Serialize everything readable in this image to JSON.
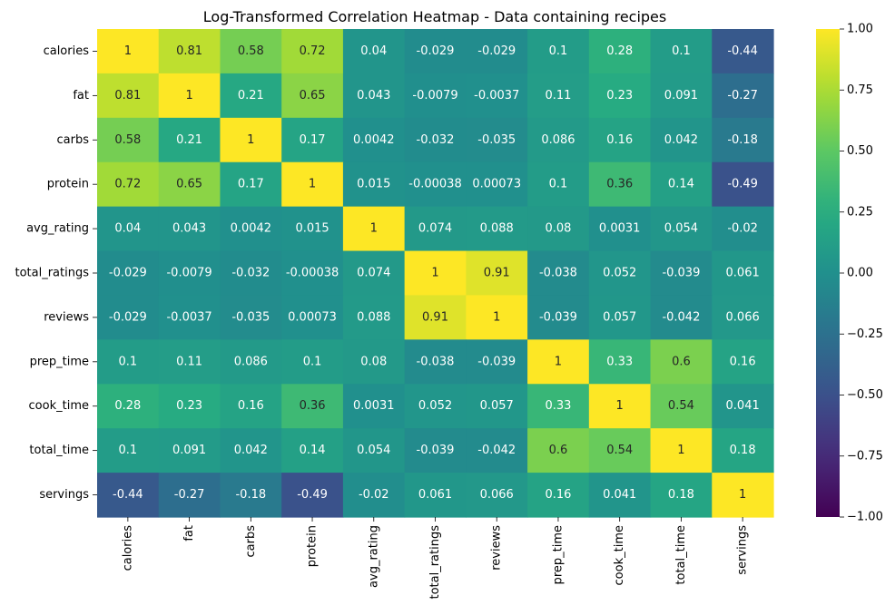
{
  "chart_data": {
    "type": "heatmap",
    "title": "Log-Transformed Correlation Heatmap - Data containing recipes",
    "xlabel": "",
    "ylabel": "",
    "colormap": "viridis",
    "vmin": -1.0,
    "vmax": 1.0,
    "categories": [
      "calories",
      "fat",
      "carbs",
      "protein",
      "avg_rating",
      "total_ratings",
      "reviews",
      "prep_time",
      "cook_time",
      "total_time",
      "servings"
    ],
    "values": [
      [
        1,
        0.81,
        0.58,
        0.72,
        0.04,
        -0.029,
        -0.029,
        0.1,
        0.28,
        0.1,
        -0.44
      ],
      [
        0.81,
        1,
        0.21,
        0.65,
        0.043,
        -0.0079,
        -0.0037,
        0.11,
        0.23,
        0.091,
        -0.27
      ],
      [
        0.58,
        0.21,
        1,
        0.17,
        0.0042,
        -0.032,
        -0.035,
        0.086,
        0.16,
        0.042,
        -0.18
      ],
      [
        0.72,
        0.65,
        0.17,
        1,
        0.015,
        -0.00038,
        0.00073,
        0.1,
        0.36,
        0.14,
        -0.49
      ],
      [
        0.04,
        0.043,
        0.0042,
        0.015,
        1,
        0.074,
        0.088,
        0.08,
        0.0031,
        0.054,
        -0.02
      ],
      [
        -0.029,
        -0.0079,
        -0.032,
        -0.00038,
        0.074,
        1,
        0.91,
        -0.038,
        0.052,
        -0.039,
        0.061
      ],
      [
        -0.029,
        -0.0037,
        -0.035,
        0.00073,
        0.088,
        0.91,
        1,
        -0.039,
        0.057,
        -0.042,
        0.066
      ],
      [
        0.1,
        0.11,
        0.086,
        0.1,
        0.08,
        -0.038,
        -0.039,
        1,
        0.33,
        0.6,
        0.16
      ],
      [
        0.28,
        0.23,
        0.16,
        0.36,
        0.0031,
        0.052,
        0.057,
        0.33,
        1,
        0.54,
        0.041
      ],
      [
        0.1,
        0.091,
        0.042,
        0.14,
        0.054,
        -0.039,
        -0.042,
        0.6,
        0.54,
        1,
        0.18
      ],
      [
        -0.44,
        -0.27,
        -0.18,
        -0.49,
        -0.02,
        0.061,
        0.066,
        0.16,
        0.041,
        0.18,
        1
      ]
    ],
    "colorbar_ticks": [
      "1.00",
      "0.75",
      "0.50",
      "0.25",
      "0.00",
      "−0.25",
      "−0.50",
      "−0.75",
      "−1.00"
    ],
    "colorbar_tick_values": [
      1.0,
      0.75,
      0.5,
      0.25,
      0.0,
      -0.25,
      -0.5,
      -0.75,
      -1.0
    ]
  }
}
